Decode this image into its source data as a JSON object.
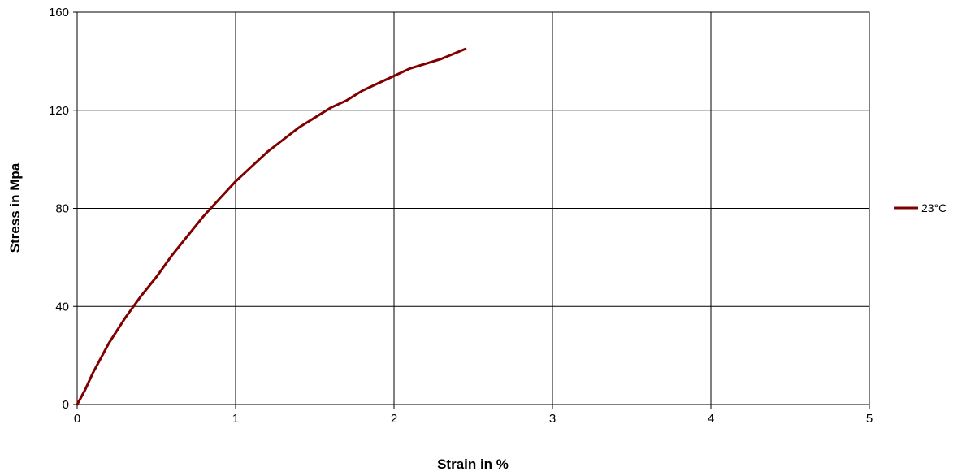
{
  "chart_data": {
    "type": "line",
    "title": "",
    "xlabel": "Strain in %",
    "ylabel": "Stress in Mpa",
    "xlim": [
      0,
      5
    ],
    "ylim": [
      0,
      160
    ],
    "x_ticks": [
      "0",
      "1",
      "2",
      "3",
      "4",
      "5"
    ],
    "y_ticks": [
      "0",
      "40",
      "80",
      "120",
      "160"
    ],
    "grid": true,
    "legend_position": "right",
    "series": [
      {
        "name": "23°C",
        "color": "#800000",
        "x": [
          0,
          0.05,
          0.1,
          0.2,
          0.3,
          0.4,
          0.5,
          0.6,
          0.7,
          0.8,
          0.9,
          1.0,
          1.1,
          1.2,
          1.3,
          1.4,
          1.5,
          1.6,
          1.7,
          1.8,
          1.9,
          2.0,
          2.1,
          2.2,
          2.3,
          2.45
        ],
        "y": [
          0,
          6,
          13,
          25,
          35,
          44,
          52,
          61,
          69,
          77,
          84,
          91,
          97,
          103,
          108,
          113,
          117,
          121,
          124,
          128,
          131,
          134,
          137,
          139,
          141,
          145
        ]
      }
    ]
  }
}
